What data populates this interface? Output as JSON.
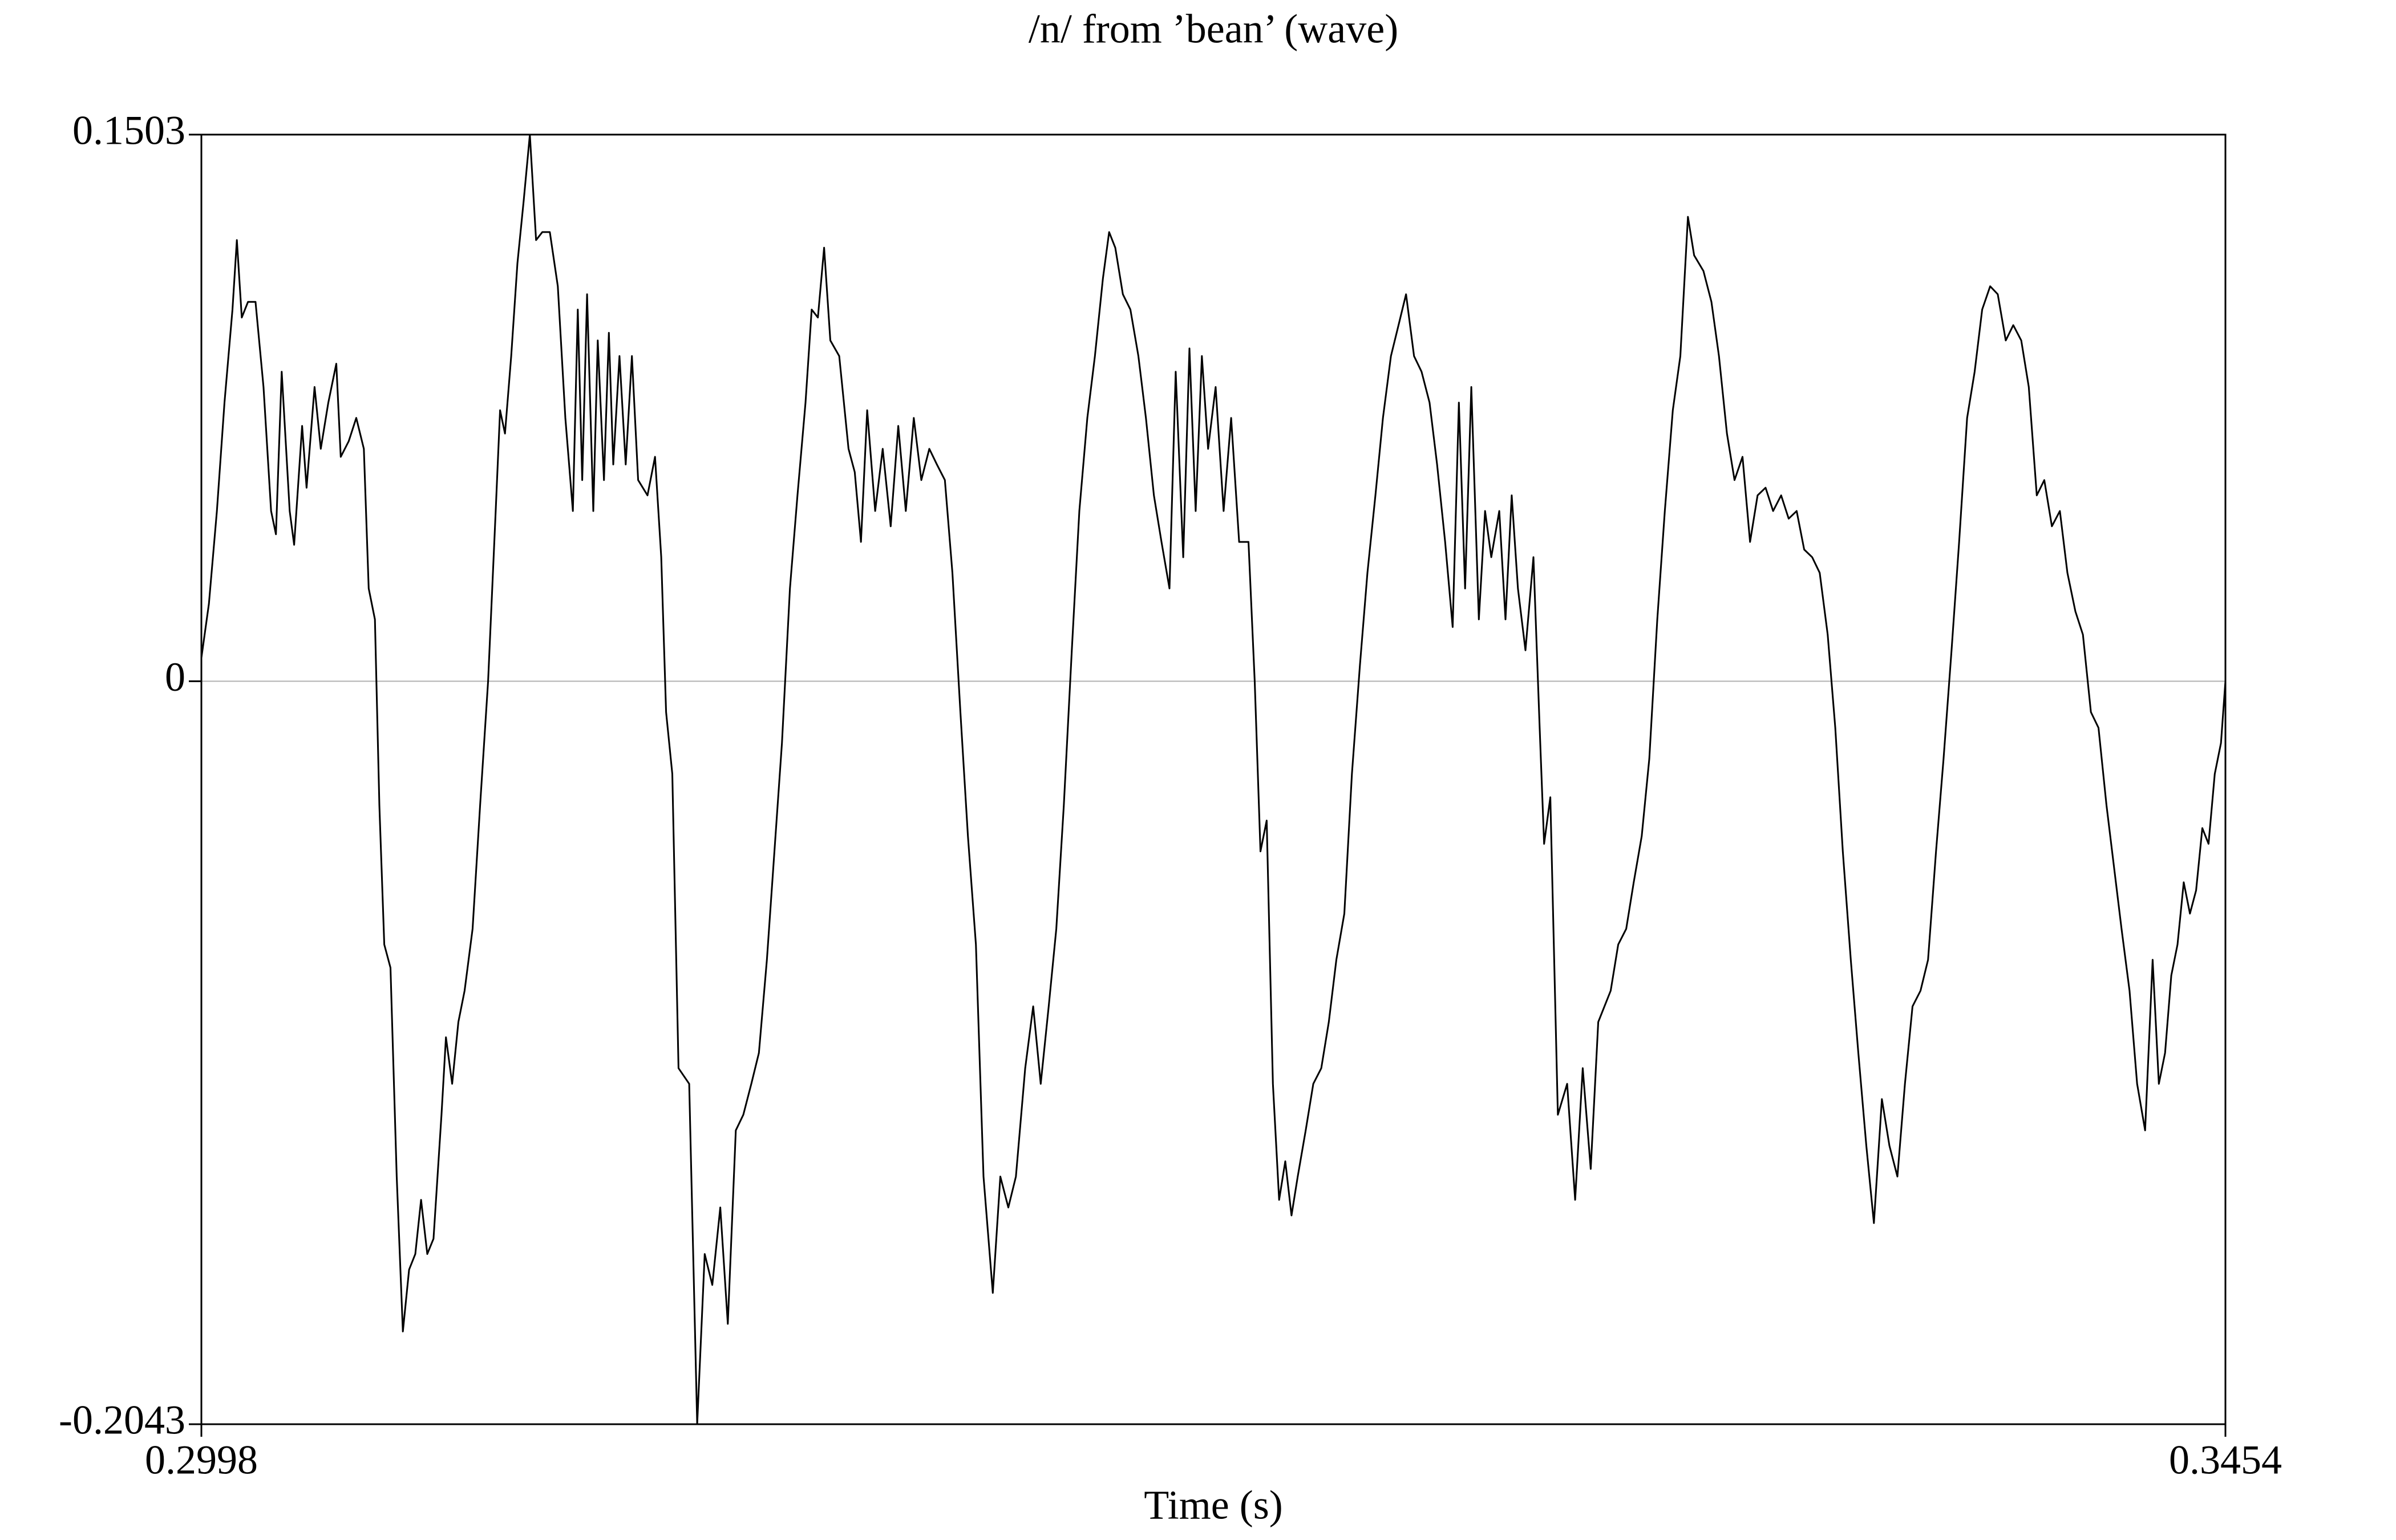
{
  "chart_data": {
    "type": "line",
    "title": "/n/ from ’bean’ (wave)",
    "x_label": "Time (s)",
    "xlim": [
      0.2998,
      0.3454
    ],
    "xticks": [
      0.2998,
      0.3454
    ],
    "ylim": [
      -0.2043,
      0.1503
    ],
    "yticks": [
      -0.2043,
      0,
      0.1503
    ],
    "zero_line": true,
    "zero_line_color": "#b0b0b0",
    "x": [
      0.2998,
      0.29997,
      0.30015,
      0.30032,
      0.3005,
      0.3006,
      0.30071,
      0.30085,
      0.30102,
      0.3012,
      0.30137,
      0.30148,
      0.30161,
      0.30179,
      0.30189,
      0.30207,
      0.30217,
      0.30235,
      0.30249,
      0.30266,
      0.30284,
      0.30294,
      0.30312,
      0.30329,
      0.30346,
      0.30357,
      0.30371,
      0.30381,
      0.30392,
      0.30406,
      0.3042,
      0.30434,
      0.30448,
      0.30462,
      0.30475,
      0.30489,
      0.30503,
      0.30521,
      0.30531,
      0.30545,
      0.30559,
      0.30573,
      0.30591,
      0.30608,
      0.30626,
      0.30643,
      0.30653,
      0.30664,
      0.30678,
      0.30692,
      0.30706,
      0.3072,
      0.30734,
      0.30748,
      0.30765,
      0.30783,
      0.308,
      0.30817,
      0.30828,
      0.30838,
      0.30849,
      0.30863,
      0.30873,
      0.30887,
      0.30898,
      0.30908,
      0.30922,
      0.30936,
      0.3095,
      0.30964,
      0.30985,
      0.31002,
      0.31016,
      0.31027,
      0.31041,
      0.31055,
      0.31079,
      0.31097,
      0.31114,
      0.31131,
      0.31149,
      0.31166,
      0.31184,
      0.31201,
      0.31219,
      0.31236,
      0.31254,
      0.31271,
      0.31288,
      0.31306,
      0.31323,
      0.31341,
      0.31355,
      0.31369,
      0.31383,
      0.31397,
      0.31417,
      0.31438,
      0.31452,
      0.31466,
      0.3148,
      0.31498,
      0.31515,
      0.31533,
      0.3155,
      0.31567,
      0.31585,
      0.31602,
      0.3162,
      0.31637,
      0.31655,
      0.31672,
      0.3169,
      0.31707,
      0.31725,
      0.31742,
      0.31763,
      0.3178,
      0.31798,
      0.31815,
      0.31836,
      0.31854,
      0.31871,
      0.31889,
      0.31906,
      0.31923,
      0.31941,
      0.31958,
      0.31976,
      0.31993,
      0.32011,
      0.32025,
      0.32039,
      0.32056,
      0.32073,
      0.32091,
      0.32108,
      0.32126,
      0.32143,
      0.32161,
      0.32175,
      0.32192,
      0.32206,
      0.3222,
      0.32234,
      0.32248,
      0.32265,
      0.32283,
      0.323,
      0.32318,
      0.32339,
      0.32353,
      0.32366,
      0.3238,
      0.32394,
      0.32408,
      0.32422,
      0.32436,
      0.3245,
      0.32468,
      0.32485,
      0.32503,
      0.3252,
      0.32537,
      0.32555,
      0.32572,
      0.3259,
      0.32607,
      0.32625,
      0.32642,
      0.3266,
      0.32677,
      0.32694,
      0.32712,
      0.32729,
      0.32747,
      0.32764,
      0.32782,
      0.32799,
      0.32813,
      0.32827,
      0.32841,
      0.32858,
      0.32872,
      0.32886,
      0.32904,
      0.32918,
      0.32932,
      0.32946,
      0.32963,
      0.32981,
      0.32995,
      0.33005,
      0.33019,
      0.33036,
      0.33057,
      0.33075,
      0.33092,
      0.3311,
      0.33127,
      0.33155,
      0.33172,
      0.3319,
      0.33207,
      0.33225,
      0.33242,
      0.3326,
      0.33277,
      0.33295,
      0.33312,
      0.33329,
      0.33343,
      0.33364,
      0.33382,
      0.33399,
      0.33417,
      0.33434,
      0.33452,
      0.33469,
      0.33486,
      0.33504,
      0.33521,
      0.33539,
      0.33556,
      0.33574,
      0.33591,
      0.33609,
      0.33626,
      0.33644,
      0.33661,
      0.33678,
      0.33696,
      0.33713,
      0.33731,
      0.33748,
      0.33766,
      0.33783,
      0.33801,
      0.33818,
      0.33835,
      0.33853,
      0.3387,
      0.33888,
      0.33905,
      0.33923,
      0.3394,
      0.33958,
      0.33975,
      0.33992,
      0.3401,
      0.34027,
      0.34045,
      0.34062,
      0.3408,
      0.34097,
      0.34115,
      0.34132,
      0.34149,
      0.34167,
      0.34184,
      0.34202,
      0.34219,
      0.34237,
      0.34254,
      0.34272,
      0.34289,
      0.34306,
      0.34324,
      0.34341,
      0.34359,
      0.34376,
      0.3439,
      0.34404,
      0.34418,
      0.34432,
      0.34446,
      0.3446,
      0.34474,
      0.34488,
      0.34502,
      0.34516,
      0.3453,
      0.3454
    ],
    "series": [
      {
        "color": "#000000",
        "values": [
          0.0064,
          0.0213,
          0.0468,
          0.0766,
          0.1022,
          0.1213,
          0.1,
          0.1043,
          0.1043,
          0.0809,
          0.0468,
          0.0404,
          0.0851,
          0.0468,
          0.0375,
          0.0702,
          0.0532,
          0.0809,
          0.0639,
          0.0766,
          0.0873,
          0.0617,
          0.066,
          0.0724,
          0.0639,
          0.0255,
          0.017,
          -0.0341,
          -0.0724,
          -0.0788,
          -0.1362,
          -0.1788,
          -0.1618,
          -0.1575,
          -0.1426,
          -0.1575,
          -0.1533,
          -0.1192,
          -0.0979,
          -0.1107,
          -0.0937,
          -0.0851,
          -0.0681,
          -0.0341,
          0,
          0.0468,
          0.0745,
          0.0681,
          0.0894,
          0.1149,
          0.132,
          0.1503,
          0.1213,
          0.1235,
          0.1235,
          0.1086,
          0.0724,
          0.0468,
          0.1022,
          0.0553,
          0.1064,
          0.0468,
          0.0937,
          0.0553,
          0.0958,
          0.0596,
          0.0894,
          0.0596,
          0.0894,
          0.0553,
          0.0511,
          0.0617,
          0.0341,
          -0.0085,
          -0.0255,
          -0.1064,
          -0.1107,
          -0.2043,
          -0.1575,
          -0.166,
          -0.1447,
          -0.1767,
          -0.1235,
          -0.1192,
          -0.1107,
          -0.1022,
          -0.0766,
          -0.0468,
          -0.017,
          0.0255,
          0.0511,
          0.0766,
          0.1022,
          0.1,
          0.1192,
          0.0937,
          0.0894,
          0.0639,
          0.0575,
          0.0383,
          0.0745,
          0.0468,
          0.0639,
          0.0426,
          0.0702,
          0.0468,
          0.0724,
          0.0553,
          0.0639,
          0.0596,
          0.0553,
          0.0298,
          -0.0085,
          -0.0426,
          -0.0724,
          -0.1362,
          -0.1682,
          -0.1362,
          -0.1447,
          -0.1362,
          -0.1064,
          -0.0894,
          -0.1107,
          -0.0894,
          -0.0681,
          -0.0341,
          0.0085,
          0.0468,
          0.0724,
          0.0894,
          0.1107,
          0.1235,
          0.1192,
          0.1064,
          0.1022,
          0.0894,
          0.0724,
          0.0511,
          0.0383,
          0.0255,
          0.0851,
          0.0341,
          0.0915,
          0.0468,
          0.0894,
          0.0639,
          0.0809,
          0.0468,
          0.0724,
          0.0383,
          0.0383,
          0,
          -0.0468,
          -0.0383,
          -0.1107,
          -0.1426,
          -0.132,
          -0.1469,
          -0.1362,
          -0.1235,
          -0.1107,
          -0.1064,
          -0.0937,
          -0.0766,
          -0.0639,
          -0.0255,
          0.0043,
          0.0298,
          0.0511,
          0.0724,
          0.0894,
          0.0979,
          0.1064,
          0.0894,
          0.0851,
          0.0766,
          0.0596,
          0.0383,
          0.0149,
          0.0766,
          0.0255,
          0.0809,
          0.017,
          0.0468,
          0.0341,
          0.0468,
          0.017,
          0.0511,
          0.0255,
          0.0085,
          0.0341,
          -0.0128,
          -0.0447,
          -0.0319,
          -0.1192,
          -0.1107,
          -0.1426,
          -0.1064,
          -0.1341,
          -0.0937,
          -0.0851,
          -0.0724,
          -0.0681,
          -0.0553,
          -0.0426,
          -0.0213,
          0.017,
          0.0468,
          0.0745,
          0.0894,
          0.1277,
          0.1171,
          0.1128,
          0.1043,
          0.0894,
          0.0681,
          0.0553,
          0.0617,
          0.0383,
          0.0511,
          0.0532,
          0.0468,
          0.0511,
          0.0447,
          0.0468,
          0.0362,
          0.0341,
          0.0298,
          0.0128,
          -0.0128,
          -0.0468,
          -0.0766,
          -0.1022,
          -0.1277,
          -0.149,
          -0.1149,
          -0.1277,
          -0.1362,
          -0.1107,
          -0.0894,
          -0.0851,
          -0.0766,
          -0.0468,
          -0.0213,
          0.0085,
          0.0383,
          0.0724,
          0.0851,
          0.1022,
          0.1086,
          0.1064,
          0.0937,
          0.0979,
          0.0937,
          0.0809,
          0.0511,
          0.0553,
          0.0426,
          0.0468,
          0.0298,
          0.0192,
          0.0128,
          -0.0085,
          -0.0128,
          -0.0341,
          -0.0511,
          -0.0681,
          -0.0851,
          -0.1107,
          -0.1235,
          -0.0766,
          -0.1107,
          -0.1022,
          -0.0809,
          -0.0724,
          -0.0553,
          -0.0639,
          -0.0575,
          -0.0404,
          -0.0447,
          -0.0255,
          -0.017,
          0
        ]
      }
    ]
  }
}
